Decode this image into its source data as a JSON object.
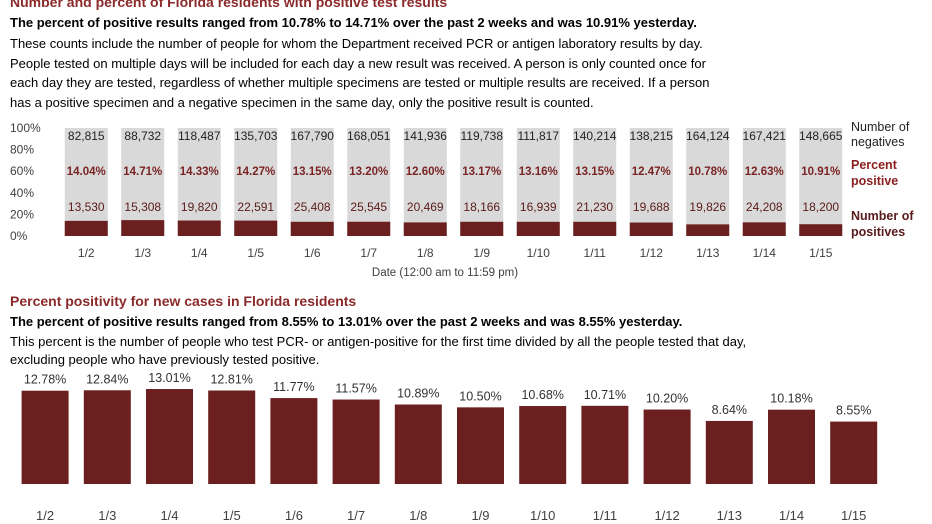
{
  "top": {
    "title": "Number and percent of Florida residents with positive test results",
    "subtitle": "The percent of positive results ranged from 10.78% to 14.71% over the past 2 weeks and was 10.91% yesterday.",
    "description_lines": [
      "These counts include the number of people for whom the Department received PCR or antigen laboratory results by day.",
      "People tested on multiple days will be included for each day a new result was received. A person is only counted once for",
      "each day they are tested, regardless of whether multiple specimens are tested or multiple results are received. If a person",
      "has a positive specimen and a negative specimen in the same day, only the positive result is counted."
    ]
  },
  "bottom": {
    "title": "Percent positivity for new cases in Florida residents",
    "subtitle": "The percent of positive results ranged from 8.55% to 13.01% over the past 2 weeks and was 8.55% yesterday.",
    "description_lines": [
      "This percent is the number of people who test PCR- or antigen-positive for the first time divided by all the people tested that day,",
      "excluding people who have previously tested positive."
    ]
  },
  "colors": {
    "dark_red": "#6b1f1f",
    "title_red": "#8b2a2a",
    "gray": "#d9d9d9"
  },
  "chart_data": [
    {
      "type": "bar",
      "stacked": true,
      "xlabel": "Date (12:00 am to 11:59 pm)",
      "ylabel": "",
      "ylim": [
        0,
        100
      ],
      "yticks": [
        "0%",
        "20%",
        "40%",
        "60%",
        "80%",
        "100%"
      ],
      "categories": [
        "1/2",
        "1/3",
        "1/4",
        "1/5",
        "1/6",
        "1/7",
        "1/8",
        "1/9",
        "1/10",
        "1/11",
        "1/12",
        "1/13",
        "1/14",
        "1/15"
      ],
      "series": [
        {
          "name": "Number of negatives",
          "values": [
            "82,815",
            "88,732",
            "118,487",
            "135,703",
            "167,790",
            "168,051",
            "141,936",
            "119,738",
            "111,817",
            "140,214",
            "138,215",
            "164,124",
            "167,421",
            "148,665"
          ]
        },
        {
          "name": "Percent positive",
          "values": [
            "14.04%",
            "14.71%",
            "14.33%",
            "14.27%",
            "13.15%",
            "13.20%",
            "12.60%",
            "13.17%",
            "13.16%",
            "13.15%",
            "12.47%",
            "10.78%",
            "12.63%",
            "10.91%"
          ]
        },
        {
          "name": "Number of positives",
          "values": [
            "13,530",
            "15,308",
            "19,820",
            "22,591",
            "25,408",
            "25,545",
            "20,469",
            "18,166",
            "16,939",
            "21,230",
            "19,688",
            "19,826",
            "24,208",
            "18,200"
          ]
        }
      ],
      "percent_positive": [
        14.04,
        14.71,
        14.33,
        14.27,
        13.15,
        13.2,
        12.6,
        13.17,
        13.16,
        13.15,
        12.47,
        10.78,
        12.63,
        10.91
      ],
      "legend": [
        "Number of",
        "negatives",
        "Percent",
        "positive",
        "Number of",
        "positives"
      ],
      "legend_position": "right"
    },
    {
      "type": "bar",
      "categories": [
        "1/2",
        "1/3",
        "1/4",
        "1/5",
        "1/6",
        "1/7",
        "1/8",
        "1/9",
        "1/10",
        "1/11",
        "1/12",
        "1/13",
        "1/14",
        "1/15"
      ],
      "values": [
        12.78,
        12.84,
        13.01,
        12.81,
        11.77,
        11.57,
        10.89,
        10.5,
        10.68,
        10.71,
        10.2,
        8.64,
        10.18,
        8.55
      ],
      "labels": [
        "12.78%",
        "12.84%",
        "13.01%",
        "12.81%",
        "11.77%",
        "11.57%",
        "10.89%",
        "10.50%",
        "10.68%",
        "10.71%",
        "10.20%",
        "8.64%",
        "10.18%",
        "8.55%"
      ]
    }
  ]
}
